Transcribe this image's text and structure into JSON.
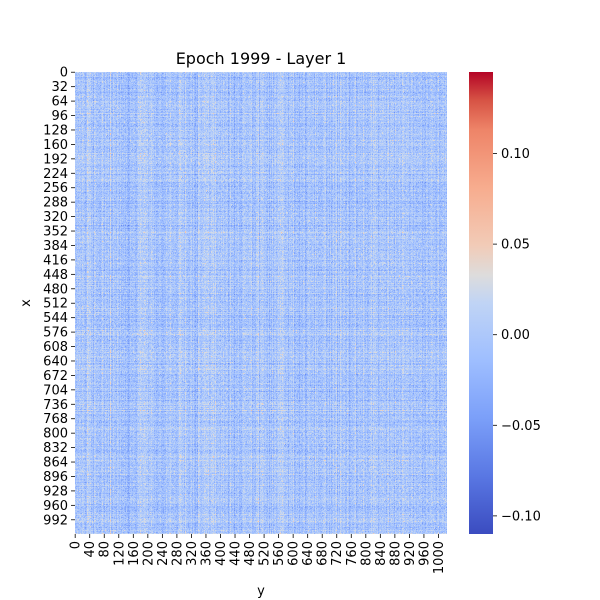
{
  "chart_data": {
    "type": "heatmap",
    "title": "Epoch 1999 - Layer 1",
    "xlabel": "y",
    "ylabel": "x",
    "shape": [
      1024,
      1024
    ],
    "x_ticks": [
      0,
      40,
      80,
      120,
      160,
      200,
      240,
      280,
      320,
      360,
      400,
      440,
      480,
      520,
      560,
      600,
      640,
      680,
      720,
      760,
      800,
      840,
      880,
      920,
      960,
      1000
    ],
    "y_ticks": [
      0,
      32,
      64,
      96,
      128,
      160,
      192,
      224,
      256,
      288,
      320,
      352,
      384,
      416,
      448,
      480,
      512,
      544,
      576,
      608,
      640,
      672,
      704,
      736,
      768,
      800,
      832,
      864,
      896,
      928,
      960,
      992
    ],
    "colorbar": {
      "colormap": "coolwarm",
      "vmin": -0.11,
      "vmax": 0.145,
      "ticks": [
        -0.1,
        -0.05,
        0.0,
        0.05,
        0.1
      ],
      "tick_labels": [
        "−0.10",
        "−0.05",
        "0.00",
        "0.05",
        "0.10"
      ]
    },
    "value_distribution": "dense noise centered near 0.0 (mostly light blue/grey), with sparse positive (red) and negative (blue) speckles and faint vertical/horizontal banding"
  }
}
